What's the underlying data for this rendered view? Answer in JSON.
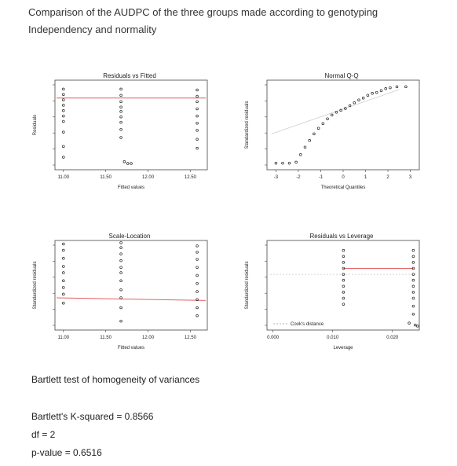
{
  "header": {
    "line1": "Comparison of the AUDPC of the three groups made according to genotyping",
    "line2": "Independency and normality"
  },
  "chart_data": [
    {
      "type": "scatter",
      "title": "Residuals vs Fitted",
      "xlabel": "Fitted values",
      "ylabel": "Residuals",
      "xticks": [
        "11.00",
        "11.50",
        "12.00",
        "12.50"
      ],
      "xlim": [
        10.9,
        12.7
      ],
      "ylim": [
        -5,
        5
      ],
      "smoother": {
        "color": "#e06060",
        "value": 3.0
      },
      "groups": [
        {
          "x": 11.0,
          "y": [
            4.0,
            3.4,
            2.8,
            2.2,
            1.6,
            1.0,
            0.4,
            -0.8,
            -2.4,
            -3.6
          ]
        },
        {
          "x": 11.68,
          "y": [
            4.0,
            3.3,
            2.6,
            2.0,
            1.5,
            0.9,
            0.3,
            -0.5,
            -1.4
          ]
        },
        {
          "x": 12.58,
          "y": [
            3.9,
            3.2,
            2.6,
            1.8,
            1.0,
            0.2,
            -0.6,
            -1.6,
            -2.6
          ]
        }
      ],
      "points": [
        {
          "x": 11.72,
          "y": -4.1
        },
        {
          "x": 11.76,
          "y": -4.3
        },
        {
          "x": 11.8,
          "y": -4.3
        }
      ]
    },
    {
      "type": "scatter",
      "title": "Normal Q-Q",
      "xlabel": "Theoretical Quantiles",
      "ylabel": "Standardized residuals",
      "xticks": [
        "-3",
        "-2",
        "-1",
        "0",
        "1",
        "2",
        "3"
      ],
      "xlim": [
        -3.4,
        3.4
      ],
      "ylim": [
        -5,
        4.5
      ],
      "reference_line": {
        "color": "#cfcfcf",
        "from": [
          -3.2,
          -1.2
        ],
        "to": [
          2.5,
          3.5
        ]
      },
      "points": [
        {
          "x": -3.0,
          "y": -4.3
        },
        {
          "x": -2.7,
          "y": -4.3
        },
        {
          "x": -2.4,
          "y": -4.3
        },
        {
          "x": -2.1,
          "y": -4.2
        },
        {
          "x": -1.9,
          "y": -3.4
        },
        {
          "x": -1.7,
          "y": -2.6
        },
        {
          "x": -1.5,
          "y": -1.9
        },
        {
          "x": -1.3,
          "y": -1.2
        },
        {
          "x": -1.1,
          "y": -0.6
        },
        {
          "x": -0.9,
          "y": -0.1
        },
        {
          "x": -0.7,
          "y": 0.4
        },
        {
          "x": -0.5,
          "y": 0.8
        },
        {
          "x": -0.3,
          "y": 1.1
        },
        {
          "x": -0.1,
          "y": 1.3
        },
        {
          "x": 0.1,
          "y": 1.5
        },
        {
          "x": 0.3,
          "y": 1.8
        },
        {
          "x": 0.5,
          "y": 2.1
        },
        {
          "x": 0.7,
          "y": 2.4
        },
        {
          "x": 0.9,
          "y": 2.6
        },
        {
          "x": 1.1,
          "y": 2.9
        },
        {
          "x": 1.3,
          "y": 3.1
        },
        {
          "x": 1.5,
          "y": 3.2
        },
        {
          "x": 1.7,
          "y": 3.4
        },
        {
          "x": 1.9,
          "y": 3.6
        },
        {
          "x": 2.1,
          "y": 3.7
        },
        {
          "x": 2.4,
          "y": 3.8
        },
        {
          "x": 2.8,
          "y": 3.8
        }
      ]
    },
    {
      "type": "scatter",
      "title": "Scale-Location",
      "xlabel": "Fitted values",
      "ylabel": "Standardized residuals",
      "xticks": [
        "11.00",
        "11.50",
        "12.00",
        "12.50"
      ],
      "xlim": [
        10.9,
        12.7
      ],
      "ylim": [
        0,
        2
      ],
      "smoother": {
        "color": "#e06060",
        "from": 0.72,
        "to": 0.66
      },
      "groups": [
        {
          "x": 11.0,
          "y": [
            1.92,
            1.78,
            1.6,
            1.42,
            1.28,
            1.1,
            0.95,
            0.8,
            0.6
          ]
        },
        {
          "x": 11.68,
          "y": [
            1.95,
            1.84,
            1.7,
            1.55,
            1.4,
            1.28,
            1.1,
            0.9,
            0.72,
            0.5,
            0.2
          ]
        },
        {
          "x": 12.58,
          "y": [
            1.88,
            1.74,
            1.58,
            1.4,
            1.22,
            1.04,
            0.86,
            0.68,
            0.5,
            0.32
          ]
        }
      ]
    },
    {
      "type": "scatter",
      "title": "Residuals vs Leverage",
      "xlabel": "Leverage",
      "ylabel": "Standardized residuals",
      "xticks": [
        "0.000",
        "0.010",
        "0.020"
      ],
      "xlim": [
        -0.001,
        0.0245
      ],
      "ylim": [
        -5,
        4
      ],
      "smoother": {
        "color": "#e06060",
        "from_x": 0.0118,
        "to_x": 0.0235,
        "value": 1.2
      },
      "baseline": {
        "color": "#cfcfcf",
        "value": 0.6
      },
      "legend": {
        "label": "Cook's distance",
        "position": "bottom-left"
      },
      "groups": [
        {
          "x": 0.0118,
          "y": [
            3.0,
            2.4,
            1.8,
            1.2,
            0.6,
            0.0,
            -0.6,
            -1.2,
            -1.8,
            -2.4
          ]
        },
        {
          "x": 0.0235,
          "y": [
            3.0,
            2.4,
            1.8,
            1.2,
            0.6,
            0.0,
            -0.6,
            -1.2,
            -1.8,
            -2.6,
            -3.4
          ]
        }
      ],
      "points": [
        {
          "x": 0.0228,
          "y": -4.3
        },
        {
          "x": 0.0238,
          "y": -4.5
        },
        {
          "x": 0.0242,
          "y": -4.6
        }
      ]
    }
  ],
  "bartlett": {
    "title": "Bartlett test of homogeneity of variances",
    "stat": "Bartlett's K-squared = 0.8566",
    "df": "df = 2",
    "pvalue": "p-value = 0.6516"
  }
}
